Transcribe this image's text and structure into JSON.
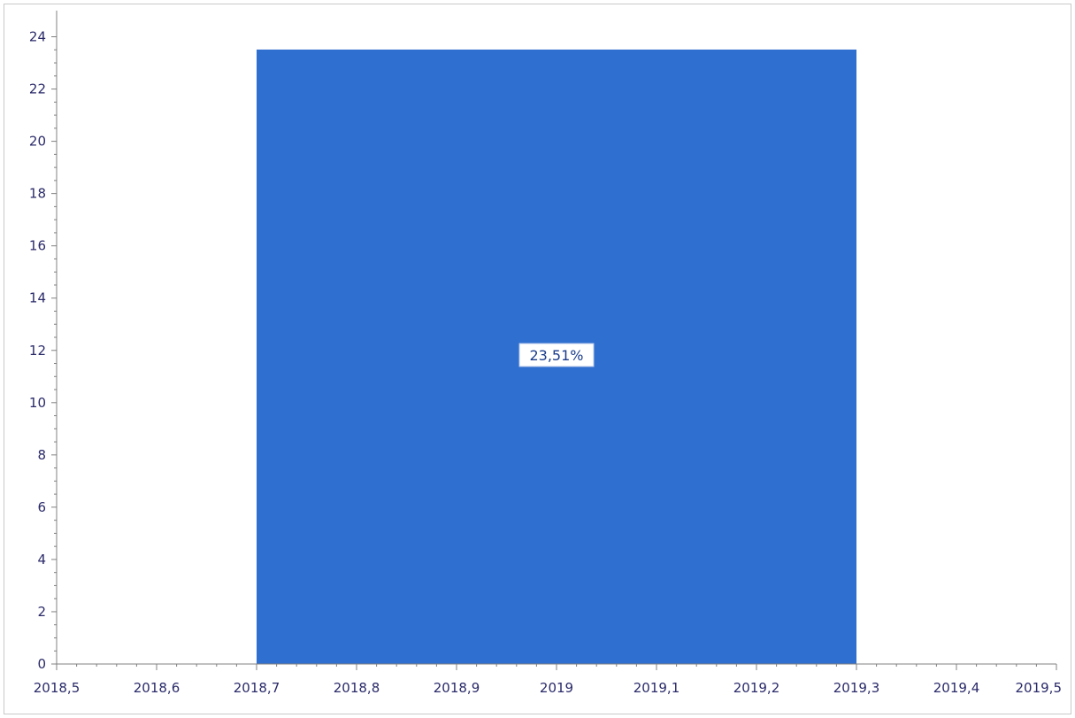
{
  "chart_data": {
    "type": "bar",
    "title": "",
    "xlabel": "",
    "ylabel": "",
    "x_range": [
      2018.5,
      2019.5
    ],
    "ylim": [
      0,
      25
    ],
    "x_ticks": [
      2018.5,
      2018.6,
      2018.7,
      2018.8,
      2018.9,
      2019,
      2019.1,
      2019.2,
      2019.3,
      2019.4,
      2019.5
    ],
    "x_tick_labels": [
      "2018,5",
      "2018,6",
      "2018,7",
      "2018,8",
      "2018,9",
      "2019",
      "2019,1",
      "2019,2",
      "2019,3",
      "2019,4",
      "2019,5"
    ],
    "y_ticks": [
      0,
      2,
      4,
      6,
      8,
      10,
      12,
      14,
      16,
      18,
      20,
      22,
      24
    ],
    "y_tick_labels": [
      "0",
      "2",
      "4",
      "6",
      "8",
      "10",
      "12",
      "14",
      "16",
      "18",
      "20",
      "22",
      "24"
    ],
    "bars": [
      {
        "x_start": 2018.7,
        "x_end": 2019.3,
        "value": 23.51,
        "label": "23,51%"
      }
    ],
    "bar_color": "#2f6fd0",
    "grid": false,
    "legend": "none"
  }
}
